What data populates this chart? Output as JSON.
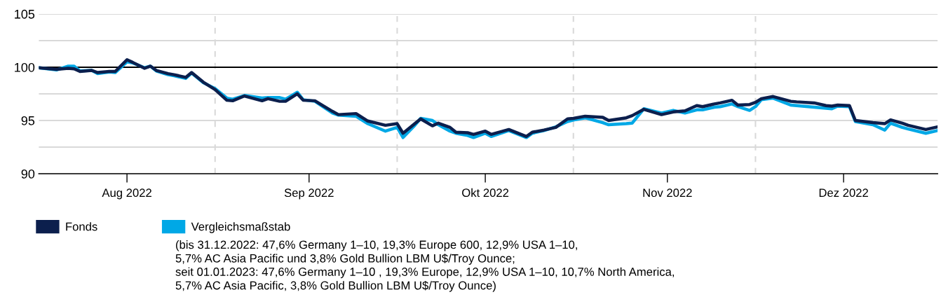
{
  "chart_data": {
    "type": "line",
    "x": [
      "2022-07-17",
      "2022-07-20",
      "2022-07-22",
      "2022-07-23",
      "2022-07-24",
      "2022-07-26",
      "2022-07-27",
      "2022-07-29",
      "2022-07-30",
      "2022-08-01",
      "2022-08-02",
      "2022-08-04",
      "2022-08-05",
      "2022-08-06",
      "2022-08-08",
      "2022-08-09",
      "2022-08-11",
      "2022-08-12",
      "2022-08-14",
      "2022-08-16",
      "2022-08-18",
      "2022-08-19",
      "2022-08-21",
      "2022-08-24",
      "2022-08-25",
      "2022-08-27",
      "2022-08-28",
      "2022-08-30",
      "2022-08-31",
      "2022-09-02",
      "2022-09-05",
      "2022-09-06",
      "2022-09-09",
      "2022-09-11",
      "2022-09-14",
      "2022-09-16",
      "2022-09-17",
      "2022-09-19",
      "2022-09-20",
      "2022-09-22",
      "2022-09-23",
      "2022-09-25",
      "2022-09-26",
      "2022-09-28",
      "2022-09-29",
      "2022-10-01",
      "2022-10-02",
      "2022-10-05",
      "2022-10-08",
      "2022-10-09",
      "2022-10-11",
      "2022-10-13",
      "2022-10-15",
      "2022-10-16",
      "2022-10-18",
      "2022-10-21",
      "2022-10-22",
      "2022-10-25",
      "2022-10-26",
      "2022-10-28",
      "2022-10-31",
      "2022-11-02",
      "2022-11-04",
      "2022-11-06",
      "2022-11-07",
      "2022-11-09",
      "2022-11-10",
      "2022-11-12",
      "2022-11-13",
      "2022-11-15",
      "2022-11-16",
      "2022-11-17",
      "2022-11-19",
      "2022-11-22",
      "2022-11-23",
      "2022-11-26",
      "2022-11-28",
      "2022-11-29",
      "2022-11-30",
      "2022-12-02",
      "2022-12-03",
      "2022-12-06",
      "2022-12-08",
      "2022-12-09",
      "2022-12-11",
      "2022-12-12",
      "2022-12-15",
      "2022-12-17"
    ],
    "series": [
      {
        "name": "Fonds",
        "color": "#0c1f4d",
        "values": [
          99.95,
          99.8,
          99.9,
          99.85,
          99.6,
          99.7,
          99.5,
          99.6,
          99.6,
          100.7,
          100.45,
          99.9,
          100.1,
          99.7,
          99.4,
          99.3,
          99.05,
          99.5,
          98.6,
          97.9,
          96.9,
          96.85,
          97.3,
          96.85,
          97.05,
          96.8,
          96.8,
          97.5,
          96.9,
          96.85,
          95.85,
          95.55,
          95.65,
          94.95,
          94.55,
          94.7,
          93.8,
          94.7,
          95.15,
          94.5,
          94.75,
          94.35,
          93.9,
          93.85,
          93.7,
          94.0,
          93.7,
          94.15,
          93.5,
          93.9,
          94.1,
          94.35,
          95.15,
          95.2,
          95.4,
          95.3,
          95.0,
          95.25,
          95.45,
          96.05,
          95.55,
          95.8,
          95.9,
          96.4,
          96.3,
          96.55,
          96.65,
          96.9,
          96.45,
          96.5,
          96.7,
          97.05,
          97.25,
          96.8,
          96.75,
          96.65,
          96.4,
          96.35,
          96.45,
          96.4,
          95.0,
          94.8,
          94.7,
          95.05,
          94.75,
          94.55,
          94.15,
          94.4
        ]
      },
      {
        "name": "Vergleichsmaßstab",
        "color": "#00a8e6",
        "values": [
          99.95,
          99.75,
          100.1,
          100.1,
          99.65,
          99.7,
          99.4,
          99.55,
          99.5,
          100.5,
          100.4,
          99.95,
          100.1,
          99.65,
          99.3,
          99.2,
          98.95,
          99.45,
          98.55,
          98.0,
          97.1,
          97.0,
          97.35,
          97.1,
          97.15,
          97.15,
          97.0,
          97.65,
          96.95,
          96.8,
          95.7,
          95.5,
          95.4,
          94.7,
          94.0,
          94.35,
          93.4,
          94.55,
          95.2,
          95.0,
          94.6,
          94.0,
          93.8,
          93.6,
          93.4,
          93.8,
          93.5,
          94.05,
          93.4,
          93.8,
          94.05,
          94.4,
          94.9,
          95.05,
          95.25,
          94.8,
          94.6,
          94.7,
          94.75,
          96.1,
          95.7,
          95.95,
          95.7,
          96.0,
          96.0,
          96.25,
          96.3,
          96.55,
          96.3,
          95.95,
          96.3,
          96.95,
          97.1,
          96.45,
          96.4,
          96.25,
          96.15,
          96.1,
          96.35,
          96.3,
          94.9,
          94.6,
          94.1,
          94.75,
          94.35,
          94.2,
          93.8,
          94.05
        ]
      }
    ],
    "xlim": [
      "2022-07-17",
      "2022-12-17"
    ],
    "xticks": [
      {
        "value": "2022-08-01",
        "label": "Aug 2022"
      },
      {
        "value": "2022-09-01",
        "label": "Sep 2022"
      },
      {
        "value": "2022-10-01",
        "label": "Okt 2022"
      },
      {
        "value": "2022-11-01",
        "label": "Nov 2022"
      },
      {
        "value": "2022-12-01",
        "label": "Dez 2022"
      }
    ],
    "ylim": [
      90,
      105
    ],
    "yticks": [
      90,
      {
        "value": 92.5,
        "label": null
      },
      95,
      {
        "value": 97.5,
        "label": null
      },
      100,
      {
        "value": 102.5,
        "label": null
      },
      105
    ],
    "grid": "y",
    "ref_lines": [
      {
        "axis": "y",
        "value": 100,
        "color": "#000000",
        "line_style": "solid"
      },
      {
        "axis": "x",
        "value": "2022-08-16",
        "color": "#d9d9d9",
        "line_style": "dashed"
      },
      {
        "axis": "x",
        "value": "2022-09-16",
        "color": "#d9d9d9",
        "line_style": "dashed"
      },
      {
        "axis": "x",
        "value": "2022-10-16",
        "color": "#d9d9d9",
        "line_style": "dashed"
      },
      {
        "axis": "x",
        "value": "2022-11-16",
        "color": "#d9d9d9",
        "line_style": "dashed"
      }
    ],
    "legend": "bottom",
    "line_style": "solid",
    "marker": "none",
    "annotations": [
      "(bis 31.12.2022: 47,6% Germany 1–10, 19,3% Europe 600, 12,9% USA 1–10,\n5,7% AC Asia Pacific und 3,8% Gold Bullion LBM U$/Troy Ounce;\nseit 01.01.2023: 47,6% Germany 1–10 , 19,3% Europe, 12,9% USA 1–10, 10,7% North America,\n5,7% AC Asia Pacific, 3,8% Gold Bullion LBM U$/Troy Ounce)"
    ]
  }
}
